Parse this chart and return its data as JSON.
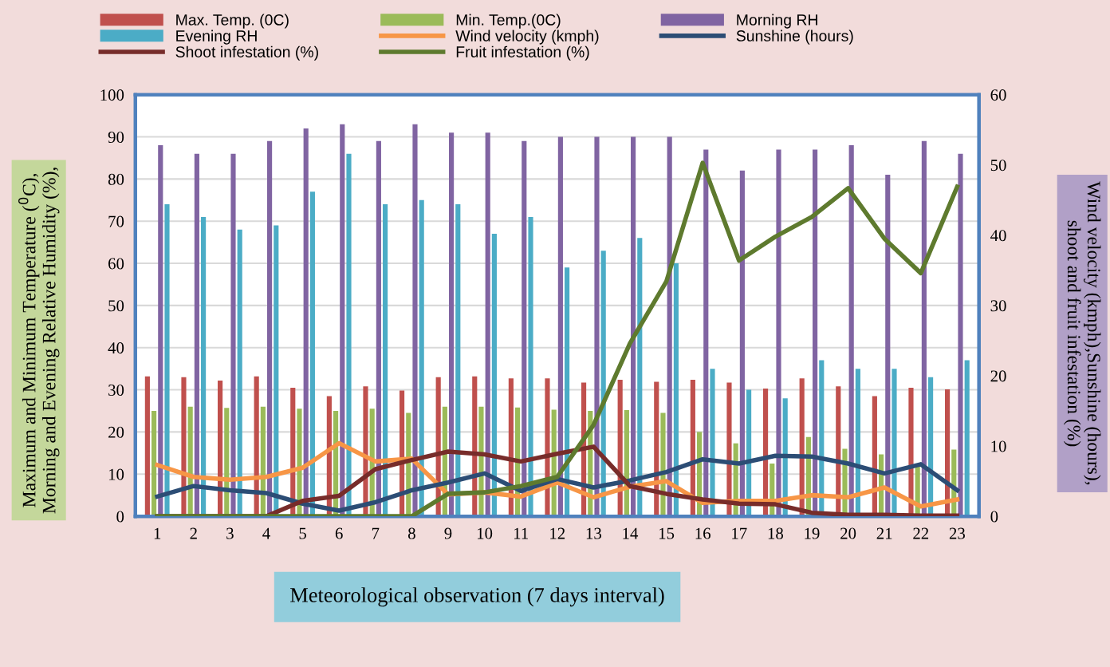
{
  "chart_data": {
    "type": "bar",
    "xlabel": "Meteorological observation (7 days interval)",
    "ylabel": "Maximum and Minimum Temperature ($^{0}$C),\nMorning and Evening Relative Humidity (%),",
    "y2label": "Wind velocity (kmph),Sunshine (hours),\nshoot and fruit infestation (%)",
    "categories": [
      "1",
      "2",
      "3",
      "4",
      "5",
      "6",
      "7",
      "8",
      "9",
      "10",
      "11",
      "12",
      "13",
      "14",
      "15",
      "16",
      "17",
      "18",
      "19",
      "20",
      "21",
      "22",
      "23"
    ],
    "series": [
      {
        "name": "Max. Temp. (0C)",
        "color": "#c0504d",
        "values": [
          33.2,
          33,
          32.2,
          33.2,
          30.5,
          28.5,
          30.8,
          29.8,
          33,
          33.2,
          32.7,
          32.7,
          31.7,
          32.4,
          31.9,
          32.4,
          31.7,
          30.3,
          32.7,
          30.8,
          28.5,
          30.5,
          30.1
        ]
      },
      {
        "name": "Min. Temp.(0C)",
        "color": "#9bbb59",
        "values": [
          25,
          26,
          25.7,
          26,
          25.5,
          25,
          25.5,
          24.5,
          26,
          26,
          25.8,
          25.3,
          25,
          25.2,
          24.5,
          20,
          17.3,
          12.5,
          18.8,
          16,
          14.7,
          12,
          15.8
        ]
      },
      {
        "name": "Morning RH",
        "color": "#8064a2",
        "values": [
          88,
          86,
          86,
          89,
          92,
          93,
          89,
          93,
          91,
          91,
          89,
          90,
          90,
          90,
          90,
          87,
          82,
          87,
          87,
          88,
          81,
          89,
          86
        ]
      },
      {
        "name": "Evening RH",
        "color": "#4bacc6",
        "values": [
          74,
          71,
          68,
          69,
          77,
          86,
          74,
          75,
          74,
          67,
          71,
          59,
          63,
          66,
          60,
          35,
          30,
          28,
          37,
          35,
          35,
          33,
          37
        ]
      },
      {
        "name": "Wind velocity (kmph)",
        "type": "line",
        "axis": "y2",
        "color": "#f79646",
        "values": [
          7.3,
          5.6,
          5.2,
          5.6,
          6.9,
          10.4,
          7.8,
          8.2,
          3.1,
          3.4,
          2.8,
          4.8,
          2.7,
          4.2,
          5.0,
          1.9,
          2.2,
          2.2,
          3.0,
          2.7,
          4.1,
          1.4,
          2.4
        ]
      },
      {
        "name": "Sunshine (hours)",
        "type": "line",
        "axis": "y2",
        "color": "#2c4d75",
        "values": [
          2.8,
          4.3,
          3.7,
          3.3,
          1.8,
          0.8,
          2.0,
          3.7,
          4.8,
          6.1,
          3.6,
          5.3,
          4.1,
          5.1,
          6.3,
          8.1,
          7.5,
          8.6,
          8.5,
          7.5,
          6.1,
          7.4,
          3.7
        ]
      },
      {
        "name": "Shoot infestation (%)",
        "type": "line",
        "axis": "y2",
        "color": "#772c2a",
        "values": [
          0,
          0,
          0,
          0,
          2.2,
          2.9,
          6.7,
          8.0,
          9.2,
          8.8,
          7.8,
          8.9,
          9.9,
          4.3,
          3.2,
          2.4,
          1.8,
          1.7,
          0.5,
          0.2,
          0.2,
          0.1,
          0.1
        ]
      },
      {
        "name": "Fruit infestation (%)",
        "type": "line",
        "axis": "y2",
        "color": "#5e7a2e",
        "values": [
          0,
          0,
          0,
          0,
          0,
          0,
          0,
          0,
          3.2,
          3.4,
          4.3,
          5.6,
          13.0,
          24.6,
          33.4,
          50.3,
          36.4,
          39.8,
          42.6,
          46.7,
          39.5,
          34.6,
          46.9
        ]
      }
    ],
    "ylim": [
      0,
      100
    ],
    "yticks": [
      0,
      10,
      20,
      30,
      40,
      50,
      60,
      70,
      80,
      90,
      100
    ],
    "y2lim": [
      0,
      60
    ],
    "y2ticks": [
      0,
      10,
      20,
      30,
      40,
      50,
      60
    ],
    "grid": "y",
    "legend": "top",
    "marker": "none",
    "line_style": "solid"
  }
}
